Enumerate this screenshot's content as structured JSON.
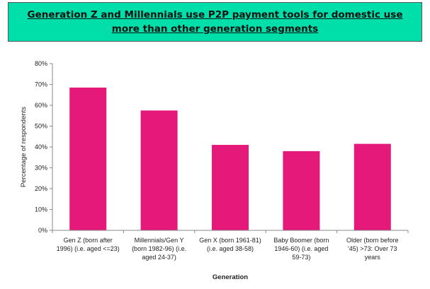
{
  "chart_data": {
    "type": "bar",
    "title": "Generation Z and Millennials use P2P payment tools for domestic use more than other generation segments",
    "xlabel": "Generation",
    "ylabel": "Percentage of respondents",
    "categories": [
      [
        "Gen Z (born after",
        "1996) (i.e. aged <=23)"
      ],
      [
        "Millennials/Gen Y",
        "(born 1982-96) (i.e.",
        "aged 24-37)"
      ],
      [
        "Gen X (born 1961-81)",
        "(i.e. aged 38-58)"
      ],
      [
        "Baby Boomer (born",
        "1946-60) (i.e. aged",
        "59-73)"
      ],
      [
        "Older (born before",
        "'45) >73: Over 73",
        "years"
      ]
    ],
    "values": [
      0.685,
      0.575,
      0.41,
      0.38,
      0.415
    ],
    "ylim": [
      0,
      0.8
    ],
    "yticks": [
      "0%",
      "10%",
      "20%",
      "30%",
      "40%",
      "50%",
      "60%",
      "70%",
      "80%"
    ],
    "grid": false,
    "legend": "none",
    "bar_color": "#e5197a",
    "title_background": "#00dfa9"
  }
}
